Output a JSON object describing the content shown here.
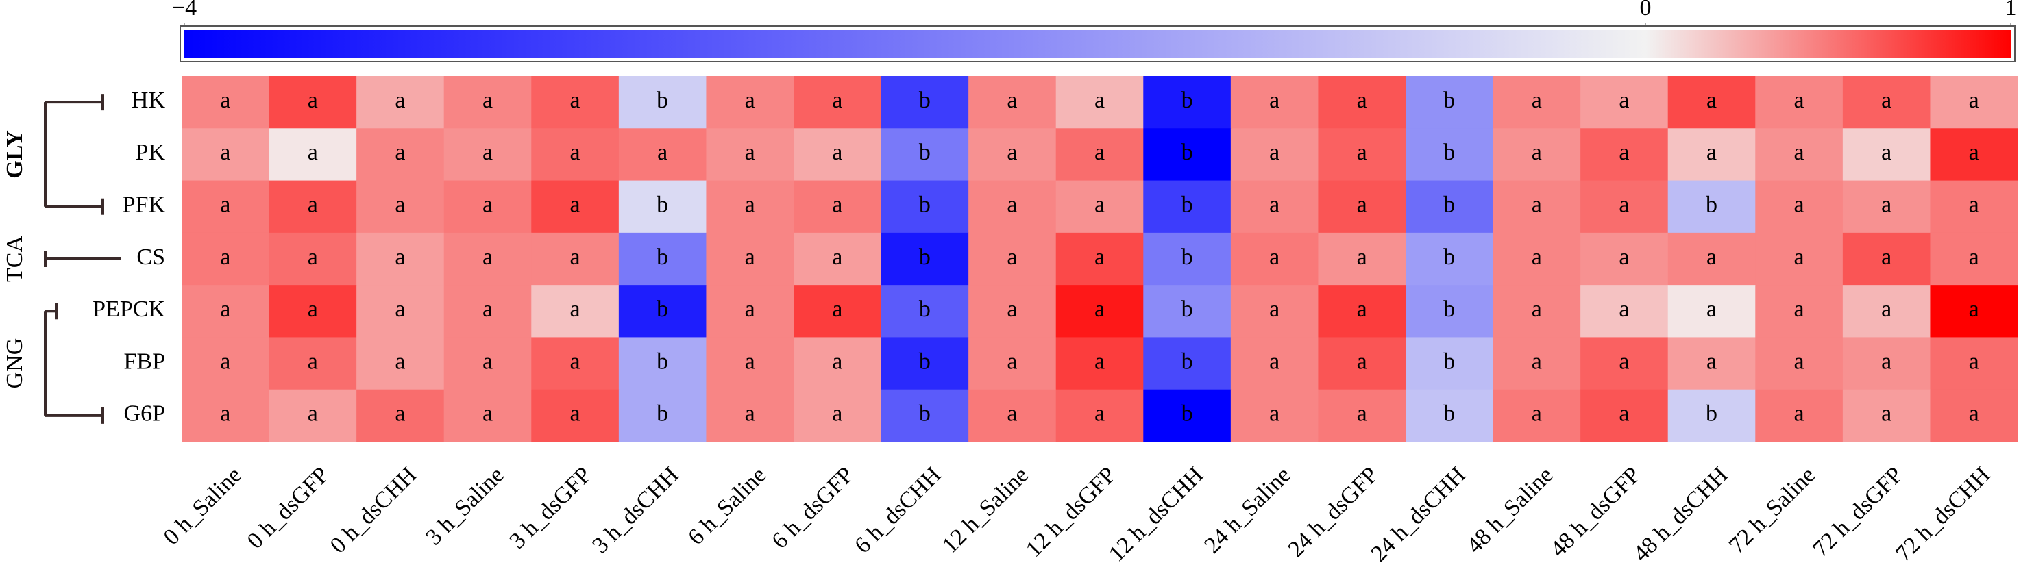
{
  "chart_data": {
    "type": "heatmap",
    "rows": [
      "HK",
      "PK",
      "PFK",
      "CS",
      "PEPCK",
      "FBP",
      "G6P"
    ],
    "columns": [
      "0 h_Saline",
      "0 h_dsGFP",
      "0 h_dsCHH",
      "3 h_Saline",
      "3 h_dsGFP",
      "3 h_dsCHH",
      "6 h_Saline",
      "6 h_dsGFP",
      "6 h_dsCHH",
      "12 h_Saline",
      "12 h_dsGFP",
      "12 h_dsCHH",
      "24 h_Saline",
      "24 h_dsGFP",
      "24 h_dsCHH",
      "48 h_Saline",
      "48 h_dsGFP",
      "48 h_dsCHH",
      "72 h_Saline",
      "72 h_dsGFP",
      "72 h_dsCHH"
    ],
    "groups": [
      "GLY",
      "TCA",
      "GNG"
    ],
    "values": [
      [
        0.45,
        0.7,
        0.3,
        0.45,
        0.6,
        -0.6,
        0.45,
        0.6,
        -3.0,
        0.45,
        0.25,
        -3.6,
        0.45,
        0.65,
        -1.6,
        0.45,
        0.35,
        0.7,
        0.45,
        0.6,
        0.35
      ],
      [
        0.35,
        0.05,
        0.45,
        0.4,
        0.55,
        0.5,
        0.4,
        0.3,
        -2.0,
        0.4,
        0.55,
        -4.0,
        0.4,
        0.6,
        -1.6,
        0.4,
        0.6,
        0.2,
        0.4,
        0.15,
        0.8
      ],
      [
        0.5,
        0.65,
        0.45,
        0.5,
        0.7,
        -0.4,
        0.45,
        0.5,
        -2.8,
        0.45,
        0.4,
        -3.0,
        0.45,
        0.65,
        -2.2,
        0.45,
        0.55,
        -0.9,
        0.45,
        0.4,
        0.5
      ],
      [
        0.5,
        0.55,
        0.35,
        0.45,
        0.45,
        -2.0,
        0.45,
        0.35,
        -3.6,
        0.45,
        0.7,
        -2.0,
        0.5,
        0.4,
        -1.4,
        0.45,
        0.4,
        0.45,
        0.45,
        0.65,
        0.5
      ],
      [
        0.45,
        0.75,
        0.35,
        0.45,
        0.2,
        -3.5,
        0.45,
        0.75,
        -2.5,
        0.45,
        0.9,
        -1.7,
        0.45,
        0.75,
        -1.5,
        0.45,
        0.2,
        0.05,
        0.45,
        0.25,
        1.0
      ],
      [
        0.45,
        0.55,
        0.35,
        0.45,
        0.6,
        -1.2,
        0.45,
        0.35,
        -3.3,
        0.45,
        0.75,
        -2.8,
        0.45,
        0.65,
        -0.9,
        0.45,
        0.6,
        0.35,
        0.45,
        0.4,
        0.55
      ],
      [
        0.45,
        0.35,
        0.55,
        0.45,
        0.65,
        -1.2,
        0.45,
        0.35,
        -2.5,
        0.5,
        0.6,
        -4.0,
        0.45,
        0.5,
        -0.8,
        0.5,
        0.65,
        -0.6,
        0.5,
        0.35,
        0.55
      ]
    ],
    "labels": [
      [
        "a",
        "a",
        "a",
        "a",
        "a",
        "b",
        "a",
        "a",
        "b",
        "a",
        "a",
        "b",
        "a",
        "a",
        "b",
        "a",
        "a",
        "a",
        "a",
        "a",
        "a"
      ],
      [
        "a",
        "a",
        "a",
        "a",
        "a",
        "a",
        "a",
        "a",
        "b",
        "a",
        "a",
        "b",
        "a",
        "a",
        "b",
        "a",
        "a",
        "a",
        "a",
        "a",
        "a"
      ],
      [
        "a",
        "a",
        "a",
        "a",
        "a",
        "b",
        "a",
        "a",
        "b",
        "a",
        "a",
        "b",
        "a",
        "a",
        "b",
        "a",
        "a",
        "b",
        "a",
        "a",
        "a"
      ],
      [
        "a",
        "a",
        "a",
        "a",
        "a",
        "b",
        "a",
        "a",
        "b",
        "a",
        "a",
        "b",
        "a",
        "a",
        "b",
        "a",
        "a",
        "a",
        "a",
        "a",
        "a"
      ],
      [
        "a",
        "a",
        "a",
        "a",
        "a",
        "b",
        "a",
        "a",
        "b",
        "a",
        "a",
        "b",
        "a",
        "a",
        "b",
        "a",
        "a",
        "a",
        "a",
        "a",
        "a"
      ],
      [
        "a",
        "a",
        "a",
        "a",
        "a",
        "b",
        "a",
        "a",
        "b",
        "a",
        "a",
        "b",
        "a",
        "a",
        "b",
        "a",
        "a",
        "a",
        "a",
        "a",
        "a"
      ],
      [
        "a",
        "a",
        "a",
        "a",
        "a",
        "b",
        "a",
        "a",
        "b",
        "a",
        "a",
        "b",
        "a",
        "a",
        "b",
        "a",
        "a",
        "b",
        "a",
        "a",
        "a"
      ]
    ],
    "clim": [
      -4,
      1
    ],
    "cticks": [
      {
        "value": -4,
        "label": "−4"
      },
      0,
      1
    ],
    "colors": [
      "#0000ff",
      "#f2f2f2",
      "#ff0000"
    ]
  }
}
